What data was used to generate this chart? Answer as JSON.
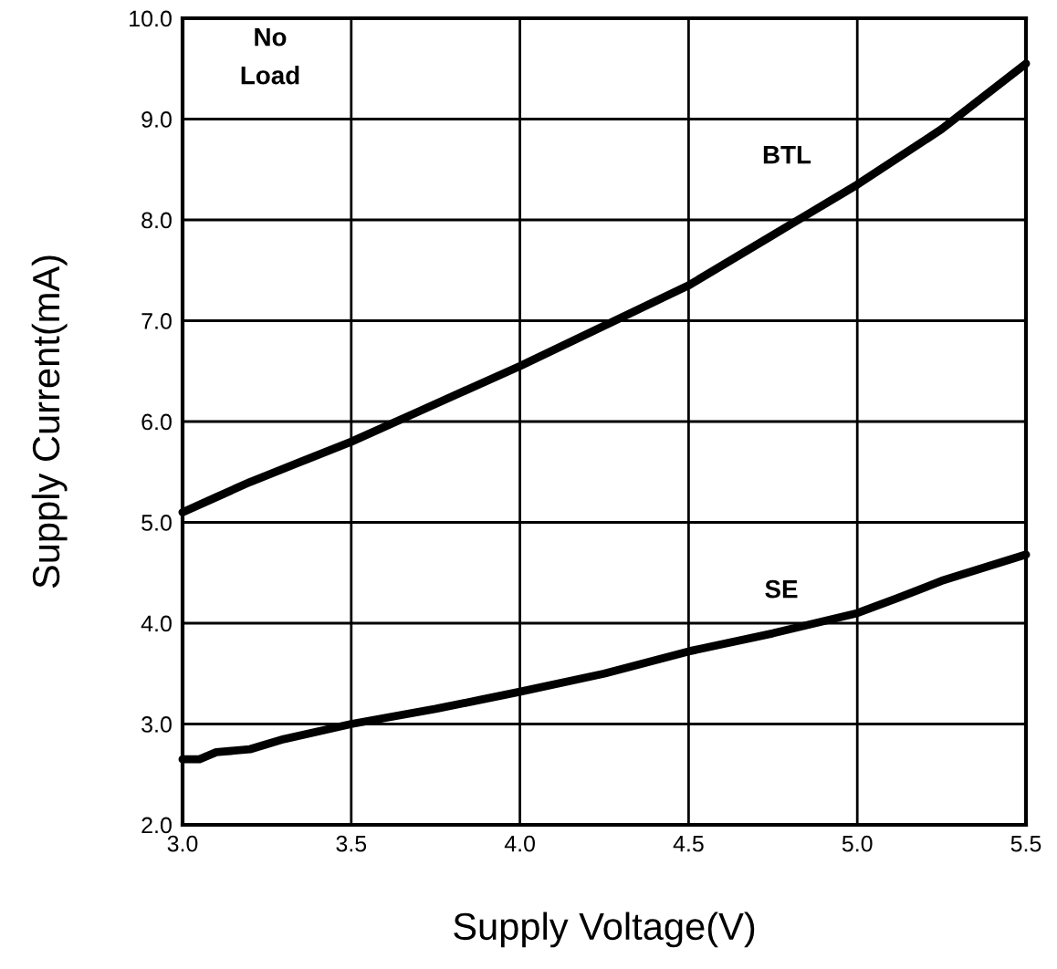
{
  "chart_data": {
    "type": "line",
    "xlabel": "Supply Voltage(V)",
    "ylabel": "Supply Current(mA)",
    "xlim": [
      3.0,
      5.5
    ],
    "ylim": [
      2.0,
      10.0
    ],
    "xticks": [
      {
        "value": 3.0,
        "label": "3.0"
      },
      {
        "value": 3.5,
        "label": "3.5"
      },
      {
        "value": 4.0,
        "label": "4.0"
      },
      {
        "value": 4.5,
        "label": "4.5"
      },
      {
        "value": 5.0,
        "label": "5.0"
      },
      {
        "value": 5.5,
        "label": "5.5"
      }
    ],
    "yticks": [
      {
        "value": 2.0,
        "label": "2.0"
      },
      {
        "value": 3.0,
        "label": "3.0"
      },
      {
        "value": 4.0,
        "label": "4.0"
      },
      {
        "value": 5.0,
        "label": "5.0"
      },
      {
        "value": 6.0,
        "label": "6.0"
      },
      {
        "value": 7.0,
        "label": "7.0"
      },
      {
        "value": 8.0,
        "label": "8.0"
      },
      {
        "value": 9.0,
        "label": "9.0"
      },
      {
        "value": 10.0,
        "label": "10.0"
      }
    ],
    "grid": true,
    "marker": "none",
    "line_style": "solid",
    "series": [
      {
        "color": "#000000",
        "x": [
          3.0,
          3.1,
          3.2,
          3.35,
          3.5,
          3.7,
          4.0,
          4.25,
          4.5,
          4.75,
          4.85,
          5.0,
          5.25,
          5.5
        ],
        "values": [
          5.1,
          5.25,
          5.4,
          5.6,
          5.8,
          6.1,
          6.55,
          6.95,
          7.35,
          7.85,
          8.05,
          8.35,
          8.9,
          9.55
        ]
      },
      {
        "color": "#000000",
        "x": [
          3.0,
          3.05,
          3.1,
          3.2,
          3.3,
          3.5,
          3.75,
          4.0,
          4.25,
          4.5,
          4.75,
          5.0,
          5.12,
          5.25,
          5.5
        ],
        "values": [
          2.65,
          2.65,
          2.72,
          2.75,
          2.85,
          3.0,
          3.15,
          3.32,
          3.5,
          3.72,
          3.9,
          4.1,
          4.25,
          4.42,
          4.68
        ]
      }
    ],
    "annotations": [
      "No\nLoad",
      "BTL",
      "SE"
    ]
  }
}
